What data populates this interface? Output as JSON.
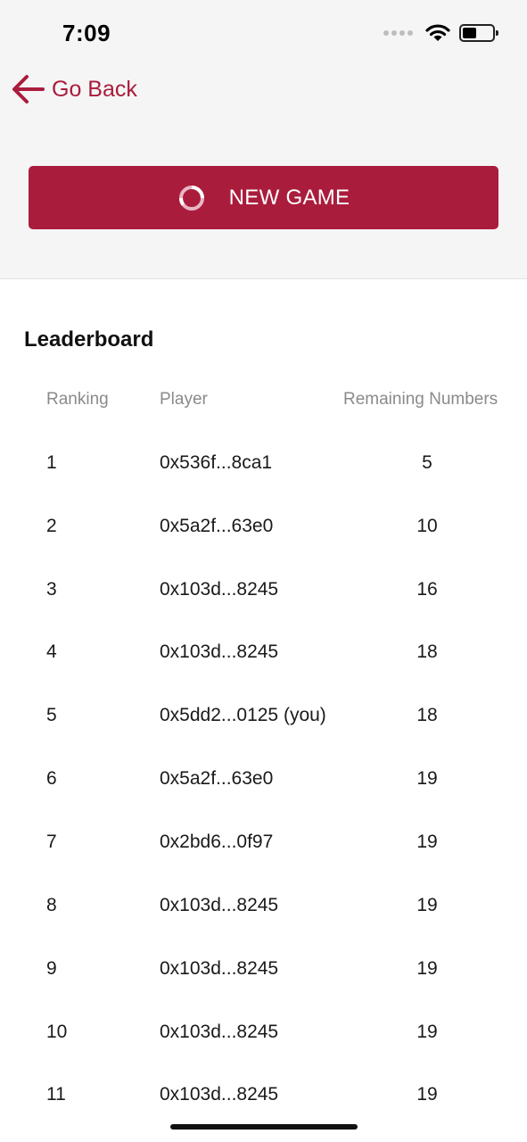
{
  "status_bar": {
    "time": "7:09"
  },
  "nav": {
    "back_label": "Go Back"
  },
  "actions": {
    "new_game_label": "NEW GAME"
  },
  "leaderboard": {
    "title": "Leaderboard",
    "columns": [
      "Ranking",
      "Player",
      "Remaining Numbers"
    ],
    "rows": [
      {
        "rank": "1",
        "player": "0x536f...8ca1",
        "remaining": "5"
      },
      {
        "rank": "2",
        "player": "0x5a2f...63e0",
        "remaining": "10"
      },
      {
        "rank": "3",
        "player": "0x103d...8245",
        "remaining": "16"
      },
      {
        "rank": "4",
        "player": "0x103d...8245",
        "remaining": "18"
      },
      {
        "rank": "5",
        "player": "0x5dd2...0125 (you)",
        "remaining": "18"
      },
      {
        "rank": "6",
        "player": "0x5a2f...63e0",
        "remaining": "19"
      },
      {
        "rank": "7",
        "player": "0x2bd6...0f97",
        "remaining": "19"
      },
      {
        "rank": "8",
        "player": "0x103d...8245",
        "remaining": "19"
      },
      {
        "rank": "9",
        "player": "0x103d...8245",
        "remaining": "19"
      },
      {
        "rank": "10",
        "player": "0x103d...8245",
        "remaining": "19"
      },
      {
        "rank": "11",
        "player": "0x103d...8245",
        "remaining": "19"
      }
    ]
  },
  "colors": {
    "accent": "#aa1c3c",
    "header_bg": "#f5f5f5",
    "muted_text": "#8a8a8a"
  }
}
